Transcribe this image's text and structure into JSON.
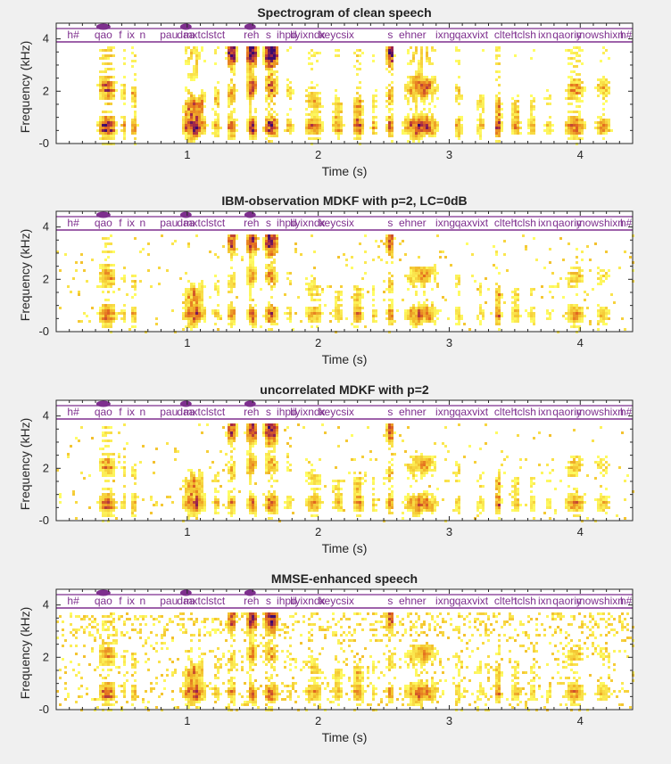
{
  "colors": {
    "figure_bg": "#f0f0f0",
    "axes_bg": "#ffffff",
    "phoneme_line": "#7e2f8e",
    "colormap": [
      "#ffff66",
      "#f3c12e",
      "#e36a1f",
      "#a1264a",
      "#3d0b6e"
    ]
  },
  "chart_data": [
    {
      "type": "heatmap",
      "title": "Spectrogram of clean speech",
      "xlabel": "Time (s)",
      "ylabel": "Frequency (kHz)",
      "xlim": [
        0,
        4.4
      ],
      "ylim": [
        0,
        4.6
      ],
      "xticks": [
        1,
        2,
        3,
        4
      ],
      "yticks": [
        4,
        2,
        0
      ],
      "ytick_labels": [
        "4",
        "2",
        "-0"
      ],
      "noise_floor": "none"
    },
    {
      "type": "heatmap",
      "title": "IBM-observation MDKF with p=2, LC=0dB",
      "xlabel": "Time (s)",
      "ylabel": "Frequency (kHz)",
      "xlim": [
        0,
        4.4
      ],
      "ylim": [
        0,
        4.6
      ],
      "xticks": [
        1,
        2,
        3,
        4
      ],
      "yticks": [
        4,
        2,
        0
      ],
      "ytick_labels": [
        "4",
        "2",
        "-0"
      ],
      "noise_floor": "low"
    },
    {
      "type": "heatmap",
      "title": "uncorrelated MDKF with p=2",
      "xlabel": "Time (s)",
      "ylabel": "Frequency (kHz)",
      "xlim": [
        0,
        4.4
      ],
      "ylim": [
        0,
        4.6
      ],
      "xticks": [
        1,
        2,
        3,
        4
      ],
      "yticks": [
        4,
        2,
        0
      ],
      "ytick_labels": [
        "4",
        "2",
        "-0"
      ],
      "noise_floor": "low"
    },
    {
      "type": "heatmap",
      "title": "MMSE-enhanced speech",
      "xlabel": "Time (s)",
      "ylabel": "Frequency (kHz)",
      "xlim": [
        0,
        4.4
      ],
      "ylim": [
        0,
        4.6
      ],
      "xticks": [
        1,
        2,
        3,
        4
      ],
      "yticks": [
        4,
        2,
        0
      ],
      "ytick_labels": [
        "4",
        "2",
        "-0"
      ],
      "noise_floor": "high"
    }
  ],
  "phoneme_labels": [
    {
      "t": 0.13,
      "text": "h#"
    },
    {
      "t": 0.36,
      "text": "qao"
    },
    {
      "t": 0.49,
      "text": "f"
    },
    {
      "t": 0.57,
      "text": "ix"
    },
    {
      "t": 0.66,
      "text": "n"
    },
    {
      "t": 0.86,
      "text": "pau"
    },
    {
      "t": 0.99,
      "text": "daa"
    },
    {
      "t": 1.13,
      "text": "mxtclstct"
    },
    {
      "t": 1.49,
      "text": "reh"
    },
    {
      "t": 1.62,
      "text": "s"
    },
    {
      "t": 1.76,
      "text": "ihpd"
    },
    {
      "t": 1.92,
      "text": "liyixndx"
    },
    {
      "t": 2.14,
      "text": "keycsix"
    },
    {
      "t": 2.55,
      "text": "s"
    },
    {
      "t": 2.72,
      "text": "ehner"
    },
    {
      "t": 2.97,
      "text": "ixng"
    },
    {
      "t": 3.17,
      "text": "qaxvixt"
    },
    {
      "t": 3.43,
      "text": "clteh"
    },
    {
      "t": 3.58,
      "text": "tclsh"
    },
    {
      "t": 3.73,
      "text": "ixn"
    },
    {
      "t": 3.9,
      "text": "qaoriy"
    },
    {
      "t": 4.15,
      "text": "mowshixn"
    },
    {
      "t": 4.35,
      "text": "h#"
    }
  ]
}
